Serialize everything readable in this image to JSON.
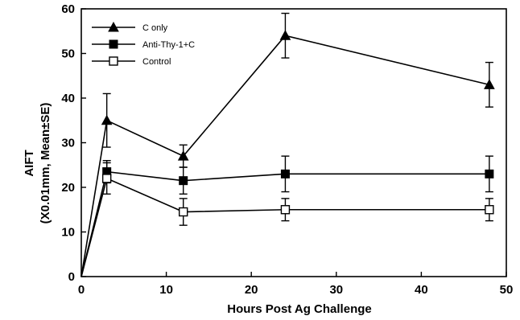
{
  "chart_data": {
    "type": "line",
    "xlabel": "Hours Post Ag Challenge",
    "ylabel_lines": [
      "AIFT",
      "(X0.01mm,   Mean±SE)"
    ],
    "xlim": [
      0,
      50
    ],
    "ylim": [
      0,
      60
    ],
    "xticks": [
      0,
      10,
      20,
      30,
      40,
      50
    ],
    "yticks": [
      0,
      10,
      20,
      30,
      40,
      50,
      60
    ],
    "grid": false,
    "legend_position": "top-left",
    "series": [
      {
        "name": "C  only",
        "marker": "filled-triangle",
        "points": [
          {
            "x": 0,
            "y": 0
          },
          {
            "x": 3,
            "y": 35,
            "err": 6
          },
          {
            "x": 12,
            "y": 27,
            "err": 2.5
          },
          {
            "x": 24,
            "y": 54,
            "err": 5
          },
          {
            "x": 48,
            "y": 43,
            "err": 5
          }
        ]
      },
      {
        "name": "Anti-Thy-1+C",
        "marker": "filled-square",
        "points": [
          {
            "x": 0,
            "y": 0
          },
          {
            "x": 3,
            "y": 23.5,
            "err": 2.5
          },
          {
            "x": 12,
            "y": 21.5,
            "err": 3
          },
          {
            "x": 24,
            "y": 23,
            "err": 4
          },
          {
            "x": 48,
            "y": 23,
            "err": 4
          }
        ]
      },
      {
        "name": "Control",
        "marker": "open-square",
        "points": [
          {
            "x": 0,
            "y": 0
          },
          {
            "x": 3,
            "y": 22,
            "err": 3.5
          },
          {
            "x": 12,
            "y": 14.5,
            "err": 3
          },
          {
            "x": 24,
            "y": 15,
            "err": 2.5
          },
          {
            "x": 48,
            "y": 15,
            "err": 2.5
          }
        ]
      }
    ]
  }
}
